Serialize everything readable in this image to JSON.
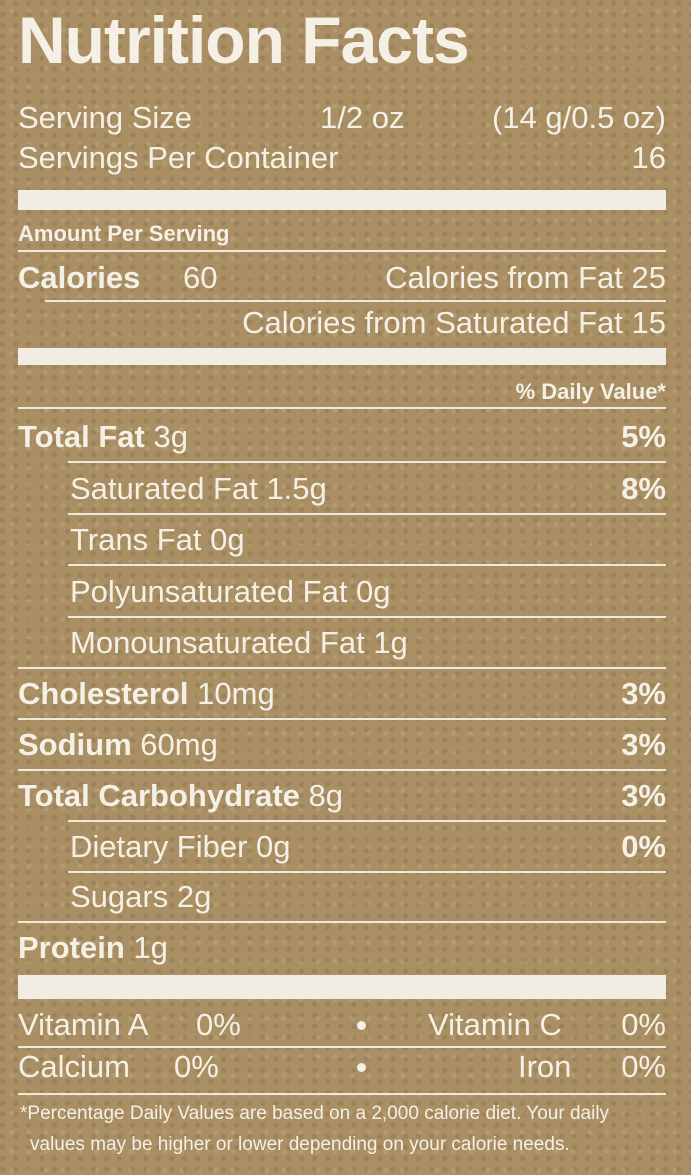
{
  "title": "Nutrition Facts",
  "serving": {
    "label": "Serving Size",
    "amount": "1/2 oz",
    "metric": "(14 g/0.5 oz)"
  },
  "servings_per_container": {
    "label": "Servings Per Container",
    "value": "16"
  },
  "amount_per_serving": "Amount Per Serving",
  "calories": {
    "label": "Calories",
    "value": "60",
    "from_fat": "Calories from Fat 25",
    "from_sat_fat": "Calories from Saturated Fat 15"
  },
  "daily_value_header": "% Daily Value*",
  "nutrients": [
    {
      "name": "Total Fat",
      "amount": "3g",
      "dv": "5%"
    },
    {
      "name": "Saturated Fat 1.5g",
      "amount": "",
      "dv": "8%"
    },
    {
      "name": "Trans Fat 0g",
      "amount": "",
      "dv": ""
    },
    {
      "name": "Polyunsaturated Fat 0g",
      "amount": "",
      "dv": ""
    },
    {
      "name": "Monounsaturated Fat 1g",
      "amount": "",
      "dv": ""
    },
    {
      "name": "Cholesterol",
      "amount": "10mg",
      "dv": "3%"
    },
    {
      "name": "Sodium",
      "amount": "60mg",
      "dv": "3%"
    },
    {
      "name": "Total Carbohydrate",
      "amount": "8g",
      "dv": "3%"
    },
    {
      "name": "Dietary Fiber 0g",
      "amount": "",
      "dv": "0%"
    },
    {
      "name": "Sugars 2g",
      "amount": "",
      "dv": ""
    },
    {
      "name": "Protein",
      "amount": "1g",
      "dv": ""
    }
  ],
  "vitamins": [
    {
      "name": "Vitamin A",
      "value": "0%"
    },
    {
      "name": "Vitamin C",
      "value": "0%"
    },
    {
      "name": "Calcium",
      "value": "0%"
    },
    {
      "name": "Iron",
      "value": "0%"
    }
  ],
  "footnote": [
    "*Percentage Daily Values are based on a 2,000 calorie diet. Your daily",
    "values may be higher or lower depending on your calorie needs."
  ]
}
